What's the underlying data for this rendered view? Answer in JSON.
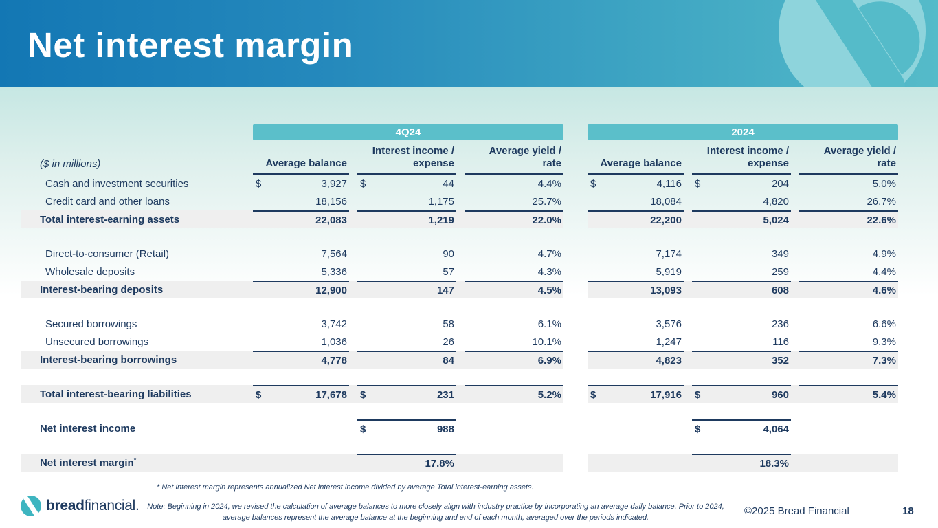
{
  "header": {
    "title": "Net interest margin"
  },
  "table": {
    "units_label": "($ in millions)",
    "groups": [
      {
        "label": "4Q24",
        "columns": [
          "Average balance",
          "Interest income /\nexpense",
          "Average yield /\nrate"
        ]
      },
      {
        "label": "2024",
        "columns": [
          "Average balance",
          "Interest income /\nexpense",
          "Average yield /\nrate"
        ]
      }
    ],
    "rows": [
      {
        "type": "data",
        "label": "Cash and investment securities",
        "q": [
          {
            "d": "$",
            "v": "3,927"
          },
          {
            "d": "$",
            "v": "44"
          },
          {
            "v": "4.4%"
          }
        ],
        "y": [
          {
            "d": "$",
            "v": "4,116"
          },
          {
            "d": "$",
            "v": "204"
          },
          {
            "v": "5.0%"
          }
        ]
      },
      {
        "type": "data",
        "label": "Credit card and other loans",
        "q": [
          {
            "v": "18,156"
          },
          {
            "v": "1,175"
          },
          {
            "v": "25.7%"
          }
        ],
        "y": [
          {
            "v": "18,084"
          },
          {
            "v": "4,820"
          },
          {
            "v": "26.7%"
          }
        ]
      },
      {
        "type": "total",
        "label": "Total interest-earning assets",
        "q": [
          {
            "v": "22,083",
            "line": true
          },
          {
            "v": "1,219",
            "line": true
          },
          {
            "v": "22.0%",
            "line": true
          }
        ],
        "y": [
          {
            "v": "22,200",
            "line": true
          },
          {
            "v": "5,024",
            "line": true
          },
          {
            "v": "22.6%",
            "line": true
          }
        ]
      },
      {
        "type": "spacer"
      },
      {
        "type": "data",
        "label": "Direct-to-consumer (Retail)",
        "q": [
          {
            "v": "7,564"
          },
          {
            "v": "90"
          },
          {
            "v": "4.7%"
          }
        ],
        "y": [
          {
            "v": "7,174"
          },
          {
            "v": "349"
          },
          {
            "v": "4.9%"
          }
        ]
      },
      {
        "type": "data",
        "label": "Wholesale deposits",
        "q": [
          {
            "v": "5,336"
          },
          {
            "v": "57"
          },
          {
            "v": "4.3%"
          }
        ],
        "y": [
          {
            "v": "5,919"
          },
          {
            "v": "259"
          },
          {
            "v": "4.4%"
          }
        ]
      },
      {
        "type": "total",
        "label": "Interest-bearing deposits",
        "q": [
          {
            "v": "12,900",
            "line": true
          },
          {
            "v": "147",
            "line": true
          },
          {
            "v": "4.5%",
            "line": true
          }
        ],
        "y": [
          {
            "v": "13,093",
            "line": true
          },
          {
            "v": "608",
            "line": true
          },
          {
            "v": "4.6%",
            "line": true
          }
        ]
      },
      {
        "type": "spacer"
      },
      {
        "type": "data",
        "label": "Secured borrowings",
        "q": [
          {
            "v": "3,742"
          },
          {
            "v": "58"
          },
          {
            "v": "6.1%"
          }
        ],
        "y": [
          {
            "v": "3,576"
          },
          {
            "v": "236"
          },
          {
            "v": "6.6%"
          }
        ]
      },
      {
        "type": "data",
        "label": "Unsecured borrowings",
        "q": [
          {
            "v": "1,036"
          },
          {
            "v": "26"
          },
          {
            "v": "10.1%"
          }
        ],
        "y": [
          {
            "v": "1,247"
          },
          {
            "v": "116"
          },
          {
            "v": "9.3%"
          }
        ]
      },
      {
        "type": "total",
        "label": "Interest-bearing borrowings",
        "q": [
          {
            "v": "4,778",
            "line": true
          },
          {
            "v": "84",
            "line": true
          },
          {
            "v": "6.9%",
            "line": true
          }
        ],
        "y": [
          {
            "v": "4,823",
            "line": true
          },
          {
            "v": "352",
            "line": true
          },
          {
            "v": "7.3%",
            "line": true
          }
        ]
      },
      {
        "type": "spacer"
      },
      {
        "type": "total",
        "label": "Total interest-bearing liabilities",
        "q": [
          {
            "d": "$",
            "v": "17,678",
            "line": true
          },
          {
            "d": "$",
            "v": "231",
            "line": true
          },
          {
            "v": "5.2%",
            "line": true
          }
        ],
        "y": [
          {
            "d": "$",
            "v": "17,916",
            "line": true
          },
          {
            "d": "$",
            "v": "960",
            "line": true
          },
          {
            "v": "5.4%",
            "line": true
          }
        ]
      },
      {
        "type": "spacer"
      },
      {
        "type": "bold",
        "label": "Net interest income",
        "q": [
          {},
          {
            "d": "$",
            "v": "988",
            "line": true
          },
          {}
        ],
        "y": [
          {},
          {
            "d": "$",
            "v": "4,064",
            "line": true
          },
          {}
        ]
      },
      {
        "type": "spacer"
      },
      {
        "type": "total",
        "label": "Net interest margin",
        "sup": "*",
        "q": [
          {},
          {
            "v": "17.8%",
            "line": true
          },
          {}
        ],
        "y": [
          {},
          {
            "v": "18.3%",
            "line": true
          },
          {}
        ]
      }
    ]
  },
  "footnotes": {
    "asterisk": "*  Net interest margin represents annualized Net interest income divided by average Total interest-earning assets.",
    "note": "Note: Beginning in 2024, we revised the calculation of average balances to more closely align with industry practice by incorporating an average daily balance. Prior to 2024, average balances represent the average balance at the beginning and end of each month, averaged over the periods indicated."
  },
  "footer": {
    "logo_text_bold": "bread",
    "logo_text_regular": " financial.",
    "copyright": "©2025 Bread Financial",
    "page_number": "18"
  },
  "colors": {
    "navy": "#1e3a5f",
    "teal_band": "#5bbfca",
    "shaded_row": "#efefef",
    "header_blue": "#1377b4",
    "header_teal": "#55bbc9",
    "watermark_teal": "#8ed4dc",
    "logo_teal": "#3eb5c0"
  }
}
